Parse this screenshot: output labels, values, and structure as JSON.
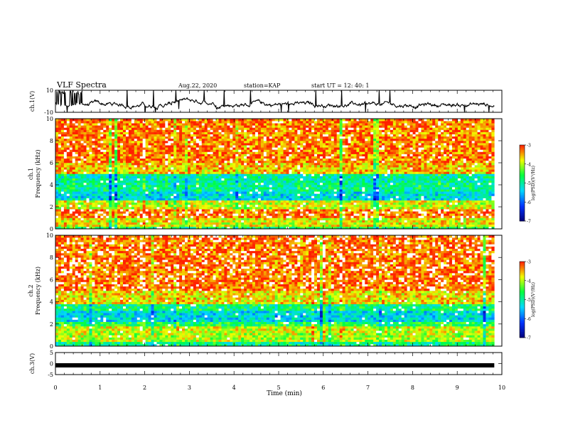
{
  "header": {
    "title": "VLF Spectra",
    "date": "Aug.22, 2020",
    "station": "station=KAP",
    "start": "start  UT =   12: 40: 1"
  },
  "chart_data": [
    {
      "type": "line",
      "name": "ch1-waveform",
      "ylabel": "ch.1(V)",
      "ylim": [
        -10,
        10
      ],
      "y_ticks": [
        "10",
        "-10"
      ],
      "x_range_min": [
        0,
        9.83
      ],
      "baseline": -3,
      "note_values": "waveform fluctuates mostly between -6 and 2 V with spikes to +10 and -10"
    },
    {
      "type": "heatmap",
      "name": "ch1-spectrogram",
      "ylabel": "Frequency (kHz)",
      "channel_label": "ch.1",
      "ylim": [
        0,
        10
      ],
      "y_ticks": [
        "0",
        "2",
        "4",
        "6",
        "8",
        "10"
      ],
      "x_range_min": [
        0,
        9.83
      ],
      "color_scale": {
        "label": "log(PSD)(V²/Hz)",
        "min": -7,
        "max": -3,
        "ticks": [
          "-3",
          "-4",
          "-5",
          "-6",
          "-7"
        ]
      },
      "bands_log_psd": [
        {
          "f": [
            0.0,
            0.3
          ],
          "v": -4.6
        },
        {
          "f": [
            0.3,
            1.0
          ],
          "v": -3.8
        },
        {
          "f": [
            1.0,
            1.8
          ],
          "v": -3.2
        },
        {
          "f": [
            1.8,
            2.6
          ],
          "v": -3.9
        },
        {
          "f": [
            2.6,
            3.4
          ],
          "v": -5.3
        },
        {
          "f": [
            3.4,
            4.2
          ],
          "v": -4.9
        },
        {
          "f": [
            4.2,
            5.0
          ],
          "v": -5.0
        },
        {
          "f": [
            5.0,
            6.0
          ],
          "v": -3.6
        },
        {
          "f": [
            6.0,
            10.0
          ],
          "v": -3.3
        }
      ]
    },
    {
      "type": "heatmap",
      "name": "ch2-spectrogram",
      "ylabel": "Frequency (kHz)",
      "channel_label": "ch.2",
      "ylim": [
        0,
        10
      ],
      "y_ticks": [
        "0",
        "2",
        "4",
        "6",
        "8",
        "10"
      ],
      "x_range_min": [
        0,
        9.83
      ],
      "color_scale": {
        "label": "log(PSD)(V²/Hz)",
        "min": -7,
        "max": -3,
        "ticks": [
          "-3",
          "-4",
          "-5",
          "-6",
          "-7"
        ]
      },
      "bands_log_psd": [
        {
          "f": [
            0.0,
            0.4
          ],
          "v": -4.8
        },
        {
          "f": [
            0.4,
            1.2
          ],
          "v": -4.0
        },
        {
          "f": [
            1.2,
            1.8
          ],
          "v": -3.9
        },
        {
          "f": [
            1.8,
            2.2
          ],
          "v": -4.6
        },
        {
          "f": [
            2.2,
            3.2
          ],
          "v": -5.3
        },
        {
          "f": [
            3.2,
            3.8
          ],
          "v": -4.8
        },
        {
          "f": [
            3.8,
            5.0
          ],
          "v": -3.7
        },
        {
          "f": [
            5.0,
            10.0
          ],
          "v": -3.2
        }
      ]
    },
    {
      "type": "line",
      "name": "ch3-waveform",
      "ylabel": "ch.3(V)",
      "ylim": [
        -5,
        5
      ],
      "y_ticks": [
        "5",
        "0",
        "-5"
      ],
      "x_range_min": [
        0,
        9.83
      ],
      "level": -0.8
    }
  ],
  "x_axis": {
    "label": "Time (min)",
    "range": [
      0,
      10
    ],
    "ticks": [
      "0",
      "1",
      "2",
      "3",
      "4",
      "5",
      "6",
      "7",
      "8",
      "9",
      "10"
    ]
  },
  "colors": {
    "waveform": "#000000",
    "colormap": [
      "#00007a",
      "#0033ff",
      "#00d8ff",
      "#00ff40",
      "#f0ff00",
      "#ff2000",
      "#ffffff"
    ]
  }
}
